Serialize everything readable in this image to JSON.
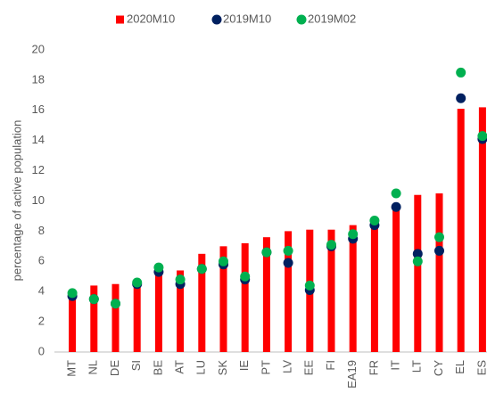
{
  "chart_data": {
    "type": "bar",
    "y_label": "percentage of active population",
    "categories": [
      "MT",
      "NL",
      "DE",
      "SI",
      "BE",
      "AT",
      "LU",
      "SK",
      "IE",
      "PT",
      "LV",
      "EE",
      "FI",
      "EA19",
      "FR",
      "IT",
      "LT",
      "CY",
      "EL",
      "ES"
    ],
    "series": [
      {
        "name": "2020M10",
        "color": "#ff0000",
        "marker": "bar",
        "values": [
          3.8,
          4.4,
          4.5,
          4.7,
          5.4,
          5.4,
          6.5,
          7.0,
          7.2,
          7.6,
          8.0,
          8.1,
          8.1,
          8.4,
          8.8,
          9.7,
          10.4,
          10.5,
          16.1,
          16.2
        ]
      },
      {
        "name": "2019M10",
        "color": "#002060",
        "marker": "dot",
        "values": [
          3.7,
          3.5,
          3.2,
          4.5,
          5.3,
          4.5,
          5.5,
          5.8,
          4.8,
          6.6,
          5.9,
          4.1,
          7.0,
          7.5,
          8.4,
          9.6,
          6.5,
          6.7,
          16.8,
          14.1
        ]
      },
      {
        "name": "2019M02",
        "color": "#00b050",
        "marker": "dot",
        "values": [
          3.9,
          3.5,
          3.2,
          4.6,
          5.6,
          4.8,
          5.5,
          6.0,
          5.0,
          6.6,
          6.7,
          4.4,
          7.1,
          7.8,
          8.7,
          10.5,
          6.0,
          7.6,
          18.5,
          14.3
        ]
      }
    ],
    "ylim": [
      0,
      20
    ],
    "yticks": [
      0,
      2,
      4,
      6,
      8,
      10,
      12,
      14,
      16,
      18,
      20
    ],
    "grid": false,
    "legend": "top"
  }
}
